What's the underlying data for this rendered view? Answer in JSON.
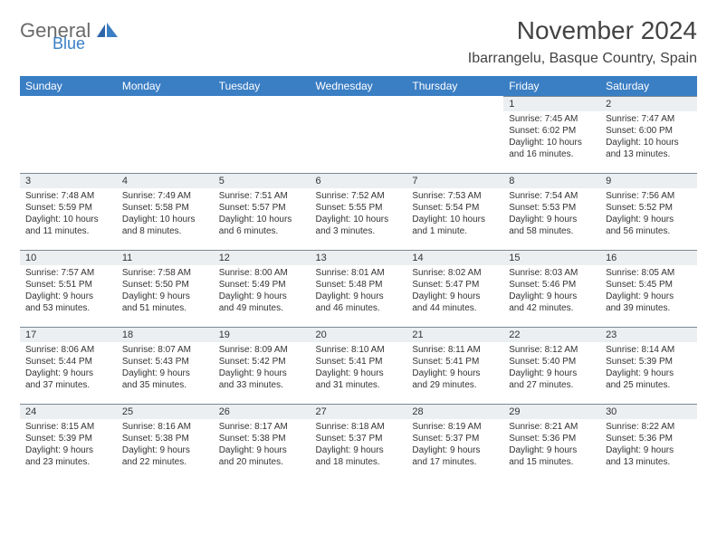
{
  "logo": {
    "top": "General",
    "bottom": "Blue"
  },
  "title": "November 2024",
  "location": "Ibarrangelu, Basque Country, Spain",
  "colors": {
    "header_bg": "#3a7ec4",
    "header_text": "#ffffff",
    "daynum_bg": "#eceff2",
    "daynum_border": "#7c8993",
    "body_bg": "#ffffff",
    "text": "#333333",
    "title_text": "#434343",
    "logo_gray": "#6a6a6a",
    "logo_blue": "#3a7ec4"
  },
  "weekdays": [
    "Sunday",
    "Monday",
    "Tuesday",
    "Wednesday",
    "Thursday",
    "Friday",
    "Saturday"
  ],
  "weeks": [
    [
      null,
      null,
      null,
      null,
      null,
      {
        "n": "1",
        "sr": "7:45 AM",
        "ss": "6:02 PM",
        "dh": "10",
        "dm": "16"
      },
      {
        "n": "2",
        "sr": "7:47 AM",
        "ss": "6:00 PM",
        "dh": "10",
        "dm": "13"
      }
    ],
    [
      {
        "n": "3",
        "sr": "7:48 AM",
        "ss": "5:59 PM",
        "dh": "10",
        "dm": "11"
      },
      {
        "n": "4",
        "sr": "7:49 AM",
        "ss": "5:58 PM",
        "dh": "10",
        "dm": "8"
      },
      {
        "n": "5",
        "sr": "7:51 AM",
        "ss": "5:57 PM",
        "dh": "10",
        "dm": "6"
      },
      {
        "n": "6",
        "sr": "7:52 AM",
        "ss": "5:55 PM",
        "dh": "10",
        "dm": "3"
      },
      {
        "n": "7",
        "sr": "7:53 AM",
        "ss": "5:54 PM",
        "dh": "10",
        "dm": "1 minute"
      },
      {
        "n": "8",
        "sr": "7:54 AM",
        "ss": "5:53 PM",
        "dh": "9",
        "dm": "58"
      },
      {
        "n": "9",
        "sr": "7:56 AM",
        "ss": "5:52 PM",
        "dh": "9",
        "dm": "56"
      }
    ],
    [
      {
        "n": "10",
        "sr": "7:57 AM",
        "ss": "5:51 PM",
        "dh": "9",
        "dm": "53"
      },
      {
        "n": "11",
        "sr": "7:58 AM",
        "ss": "5:50 PM",
        "dh": "9",
        "dm": "51"
      },
      {
        "n": "12",
        "sr": "8:00 AM",
        "ss": "5:49 PM",
        "dh": "9",
        "dm": "49"
      },
      {
        "n": "13",
        "sr": "8:01 AM",
        "ss": "5:48 PM",
        "dh": "9",
        "dm": "46"
      },
      {
        "n": "14",
        "sr": "8:02 AM",
        "ss": "5:47 PM",
        "dh": "9",
        "dm": "44"
      },
      {
        "n": "15",
        "sr": "8:03 AM",
        "ss": "5:46 PM",
        "dh": "9",
        "dm": "42"
      },
      {
        "n": "16",
        "sr": "8:05 AM",
        "ss": "5:45 PM",
        "dh": "9",
        "dm": "39"
      }
    ],
    [
      {
        "n": "17",
        "sr": "8:06 AM",
        "ss": "5:44 PM",
        "dh": "9",
        "dm": "37"
      },
      {
        "n": "18",
        "sr": "8:07 AM",
        "ss": "5:43 PM",
        "dh": "9",
        "dm": "35"
      },
      {
        "n": "19",
        "sr": "8:09 AM",
        "ss": "5:42 PM",
        "dh": "9",
        "dm": "33"
      },
      {
        "n": "20",
        "sr": "8:10 AM",
        "ss": "5:41 PM",
        "dh": "9",
        "dm": "31"
      },
      {
        "n": "21",
        "sr": "8:11 AM",
        "ss": "5:41 PM",
        "dh": "9",
        "dm": "29"
      },
      {
        "n": "22",
        "sr": "8:12 AM",
        "ss": "5:40 PM",
        "dh": "9",
        "dm": "27"
      },
      {
        "n": "23",
        "sr": "8:14 AM",
        "ss": "5:39 PM",
        "dh": "9",
        "dm": "25"
      }
    ],
    [
      {
        "n": "24",
        "sr": "8:15 AM",
        "ss": "5:39 PM",
        "dh": "9",
        "dm": "23"
      },
      {
        "n": "25",
        "sr": "8:16 AM",
        "ss": "5:38 PM",
        "dh": "9",
        "dm": "22"
      },
      {
        "n": "26",
        "sr": "8:17 AM",
        "ss": "5:38 PM",
        "dh": "9",
        "dm": "20"
      },
      {
        "n": "27",
        "sr": "8:18 AM",
        "ss": "5:37 PM",
        "dh": "9",
        "dm": "18"
      },
      {
        "n": "28",
        "sr": "8:19 AM",
        "ss": "5:37 PM",
        "dh": "9",
        "dm": "17"
      },
      {
        "n": "29",
        "sr": "8:21 AM",
        "ss": "5:36 PM",
        "dh": "9",
        "dm": "15"
      },
      {
        "n": "30",
        "sr": "8:22 AM",
        "ss": "5:36 PM",
        "dh": "9",
        "dm": "13"
      }
    ]
  ],
  "labels": {
    "sunrise": "Sunrise:",
    "sunset": "Sunset:",
    "daylight": "Daylight:",
    "hours": "hours",
    "and": "and",
    "minutes": "minutes."
  }
}
